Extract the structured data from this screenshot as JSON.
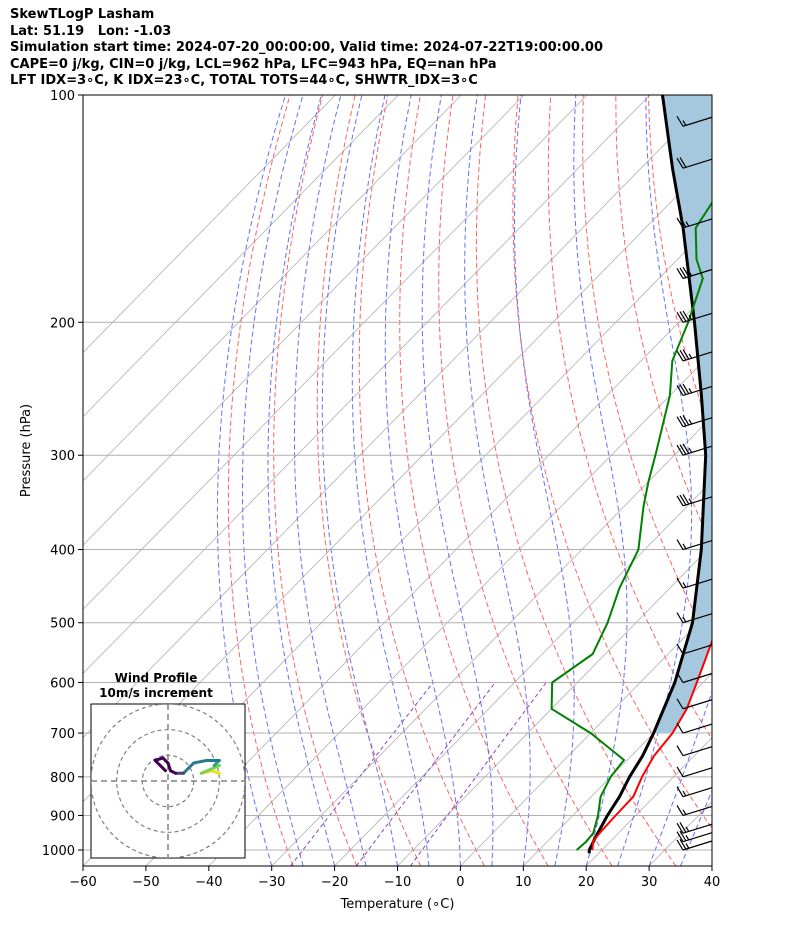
{
  "header": {
    "line1": "SkewTLogP Lasham",
    "line2": "Lat: 51.19   Lon: -1.03",
    "line3": "Simulation start time: 2024-07-20_00:00:00, Valid time: 2024-07-22T19:00:00.00",
    "line4": "CAPE=0 j/kg, CIN=0 j/kg, LCL=962 hPa, LFC=943 hPa, EQ=nan hPa",
    "line5": "LFT IDX=3∘C, K IDX=23∘C, TOTAL TOTS=44∘C, SHWTR_IDX=3∘C"
  },
  "chart_data": {
    "type": "skew-t",
    "xlabel": "Temperature (∘C)",
    "ylabel": "Pressure (hPa)",
    "xlim": [
      -60,
      40
    ],
    "ylim": [
      1050,
      100
    ],
    "y_scale": "log",
    "x_ticks": [
      "−60",
      "−50",
      "−40",
      "−30",
      "−20",
      "−10",
      "0",
      "10",
      "20",
      "30",
      "40"
    ],
    "y_ticks": [
      "1000",
      "900",
      "800",
      "700",
      "600",
      "500",
      "400",
      "300",
      "200",
      "100"
    ],
    "grid": true,
    "colors": {
      "temperature": "#ff0000",
      "dewpoint": "#008000",
      "parcel": "#000000",
      "cape_fill": "#a6c8df",
      "dry_adiabats": "#ff6060",
      "moist_adiabats": "#6070ff",
      "mixing_ratio": "#9040c0",
      "isotherms": "#b0b0b0"
    },
    "temperature_profile": [
      {
        "p": 1000,
        "t": 18.5
      },
      {
        "p": 975,
        "t": 17.3
      },
      {
        "p": 950,
        "t": 17.0
      },
      {
        "p": 900,
        "t": 16.8
      },
      {
        "p": 850,
        "t": 16.7
      },
      {
        "p": 800,
        "t": 15.0
      },
      {
        "p": 750,
        "t": 13.6
      },
      {
        "p": 700,
        "t": 13.0
      },
      {
        "p": 650,
        "t": 11.5
      },
      {
        "p": 600,
        "t": 9.0
      },
      {
        "p": 500,
        "t": 3.2
      },
      {
        "p": 400,
        "t": -5.5
      },
      {
        "p": 350,
        "t": -11.5
      },
      {
        "p": 300,
        "t": -19.5
      },
      {
        "p": 275,
        "t": -24.7
      },
      {
        "p": 250,
        "t": -30.5
      },
      {
        "p": 225,
        "t": -36.5
      },
      {
        "p": 200,
        "t": -42.5
      },
      {
        "p": 175,
        "t": -48.0
      },
      {
        "p": 150,
        "t": -52.5
      },
      {
        "p": 125,
        "t": -58.5
      },
      {
        "p": 100,
        "t": -64.5
      }
    ],
    "dewpoint_profile": [
      {
        "p": 1000,
        "t": 16.0
      },
      {
        "p": 975,
        "t": 16.2
      },
      {
        "p": 950,
        "t": 16.0
      },
      {
        "p": 900,
        "t": 14.0
      },
      {
        "p": 850,
        "t": 11.5
      },
      {
        "p": 800,
        "t": 10.0
      },
      {
        "p": 760,
        "t": 9.5
      },
      {
        "p": 700,
        "t": 0.0
      },
      {
        "p": 650,
        "t": -10.0
      },
      {
        "p": 600,
        "t": -14.0
      },
      {
        "p": 550,
        "t": -12.0
      },
      {
        "p": 500,
        "t": -14.5
      },
      {
        "p": 450,
        "t": -18.0
      },
      {
        "p": 400,
        "t": -21.0
      },
      {
        "p": 350,
        "t": -27.0
      },
      {
        "p": 325,
        "t": -30.0
      },
      {
        "p": 300,
        "t": -33.0
      },
      {
        "p": 250,
        "t": -40.0
      },
      {
        "p": 225,
        "t": -45.0
      },
      {
        "p": 200,
        "t": -48.5
      },
      {
        "p": 175,
        "t": -53.0
      },
      {
        "p": 165,
        "t": -57.0
      },
      {
        "p": 150,
        "t": -62.0
      },
      {
        "p": 100,
        "t": -69.0
      }
    ],
    "parcel_profile": [
      {
        "p": 1010,
        "t": 18.5
      },
      {
        "p": 1000,
        "t": 18.0
      },
      {
        "p": 962,
        "t": 17.0
      },
      {
        "p": 900,
        "t": 15.5
      },
      {
        "p": 850,
        "t": 14.5
      },
      {
        "p": 800,
        "t": 13.0
      },
      {
        "p": 750,
        "t": 11.8
      },
      {
        "p": 700,
        "t": 10.0
      },
      {
        "p": 600,
        "t": 5.5
      },
      {
        "p": 500,
        "t": -1.0
      },
      {
        "p": 400,
        "t": -11.0
      },
      {
        "p": 300,
        "t": -25.0
      },
      {
        "p": 250,
        "t": -35.0
      },
      {
        "p": 200,
        "t": -47.5
      },
      {
        "p": 150,
        "t": -64.0
      },
      {
        "p": 125,
        "t": -75.0
      },
      {
        "p": 100,
        "t": -88.0
      }
    ],
    "wind_barbs": [
      {
        "p": 1000,
        "speed_kt": 25
      },
      {
        "p": 975,
        "speed_kt": 25
      },
      {
        "p": 950,
        "speed_kt": 25
      },
      {
        "p": 900,
        "speed_kt": 15
      },
      {
        "p": 850,
        "speed_kt": 15
      },
      {
        "p": 800,
        "speed_kt": 10
      },
      {
        "p": 750,
        "speed_kt": 10
      },
      {
        "p": 700,
        "speed_kt": 10
      },
      {
        "p": 650,
        "speed_kt": 10
      },
      {
        "p": 600,
        "speed_kt": 10
      },
      {
        "p": 550,
        "speed_kt": 10
      },
      {
        "p": 500,
        "speed_kt": 15
      },
      {
        "p": 450,
        "speed_kt": 15
      },
      {
        "p": 400,
        "speed_kt": 15
      },
      {
        "p": 350,
        "speed_kt": 35
      },
      {
        "p": 300,
        "speed_kt": 35
      },
      {
        "p": 275,
        "speed_kt": 35
      },
      {
        "p": 250,
        "speed_kt": 35
      },
      {
        "p": 225,
        "speed_kt": 35
      },
      {
        "p": 200,
        "speed_kt": 35
      },
      {
        "p": 175,
        "speed_kt": 35
      },
      {
        "p": 150,
        "speed_kt": 25
      },
      {
        "p": 125,
        "speed_kt": 20
      },
      {
        "p": 110,
        "speed_kt": 15
      }
    ],
    "hodograph": {
      "title": "Wind Profile",
      "subtitle": "10m/s increment",
      "ring_increment": 10,
      "rings": 3,
      "range": [
        -30,
        30
      ],
      "points": [
        {
          "u": 20,
          "v": 3,
          "color": "#e5e419"
        },
        {
          "u": 17,
          "v": 4,
          "color": "#e5e419"
        },
        {
          "u": 13,
          "v": 3,
          "color": "#e5e419"
        },
        {
          "u": 20,
          "v": 6,
          "color": "#7ad151"
        },
        {
          "u": 18,
          "v": 6,
          "color": "#7ad151"
        },
        {
          "u": 20,
          "v": 8,
          "color": "#22a884"
        },
        {
          "u": 15,
          "v": 8,
          "color": "#2a788e"
        },
        {
          "u": 10,
          "v": 7,
          "color": "#2a788e"
        },
        {
          "u": 6,
          "v": 3,
          "color": "#2a788e"
        },
        {
          "u": 3,
          "v": 3,
          "color": "#414487"
        },
        {
          "u": 1,
          "v": 4,
          "color": "#440154"
        },
        {
          "u": 0,
          "v": 7,
          "color": "#440154"
        },
        {
          "u": -2,
          "v": 9,
          "color": "#440154"
        },
        {
          "u": -5,
          "v": 8,
          "color": "#440154"
        },
        {
          "u": -3,
          "v": 6,
          "color": "#440154"
        },
        {
          "u": -1,
          "v": 4,
          "color": "#440154"
        }
      ]
    }
  }
}
